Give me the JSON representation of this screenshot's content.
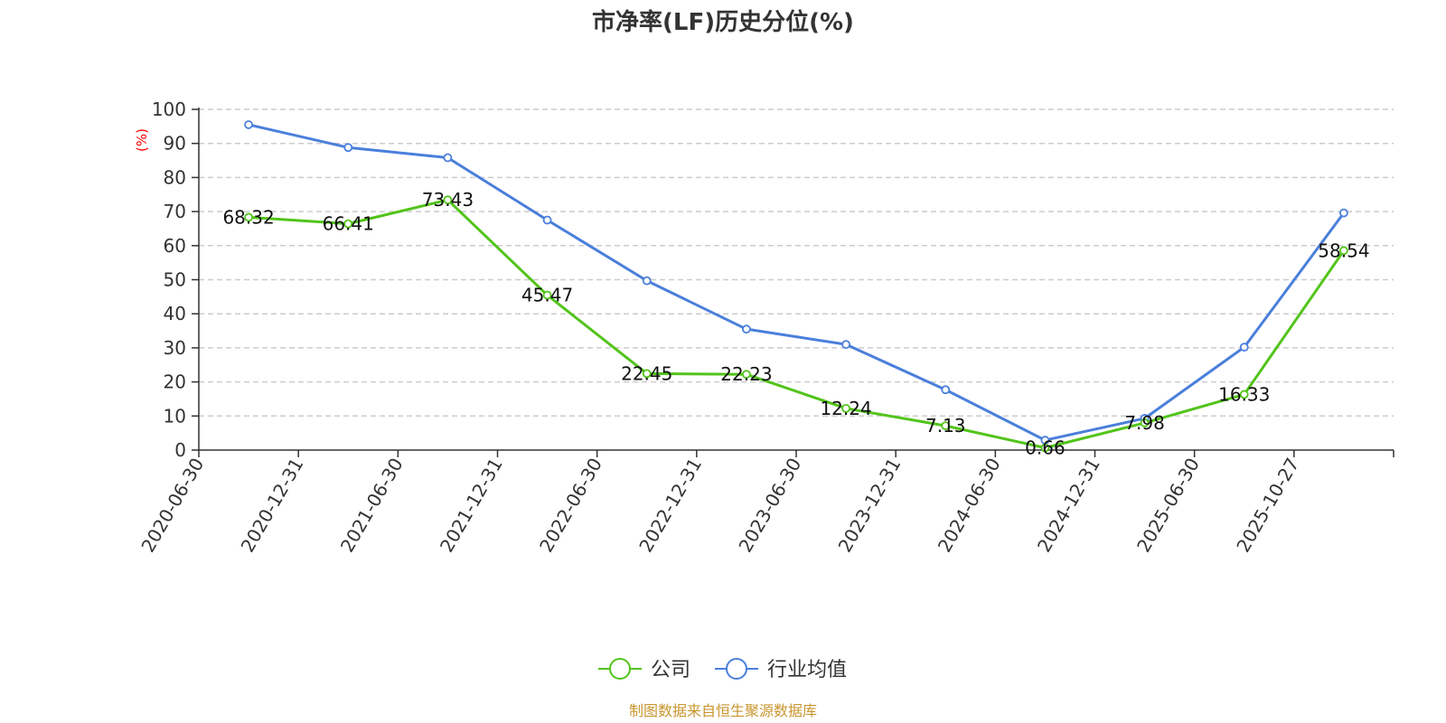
{
  "chart_data": {
    "type": "line",
    "title": "市净率(LF)历史分位(%)",
    "ylabel": "(%)",
    "xlabel": "",
    "ylim": [
      0,
      100
    ],
    "yticks": [
      0,
      10,
      20,
      30,
      40,
      50,
      60,
      70,
      80,
      90,
      100
    ],
    "categories": [
      "2020-06-30",
      "2020-12-31",
      "2021-06-30",
      "2021-12-31",
      "2022-06-30",
      "2022-12-31",
      "2023-06-30",
      "2023-12-31",
      "2024-06-30",
      "2024-12-31",
      "2025-06-30",
      "2025-10-27"
    ],
    "series": [
      {
        "name": "公司",
        "color": "#52c41a",
        "values": [
          68.32,
          66.41,
          73.43,
          45.47,
          22.45,
          22.23,
          12.24,
          7.13,
          0.66,
          7.98,
          16.33,
          58.54
        ],
        "labels": [
          "68.32",
          "66.41",
          "73.43",
          "45.47",
          "22.45",
          "22.23",
          "12.24",
          "7.13",
          "0.66",
          "7.98",
          "16.33",
          "58.54"
        ]
      },
      {
        "name": "行业均值",
        "color": "#4a7fdb",
        "values": [
          95.5,
          88.8,
          85.8,
          67.5,
          49.7,
          35.5,
          31.0,
          17.7,
          2.9,
          9.3,
          30.2,
          69.6
        ]
      }
    ],
    "grid": true,
    "legend_position": "bottom-center"
  },
  "source_text": "制图数据来自恒生聚源数据库"
}
